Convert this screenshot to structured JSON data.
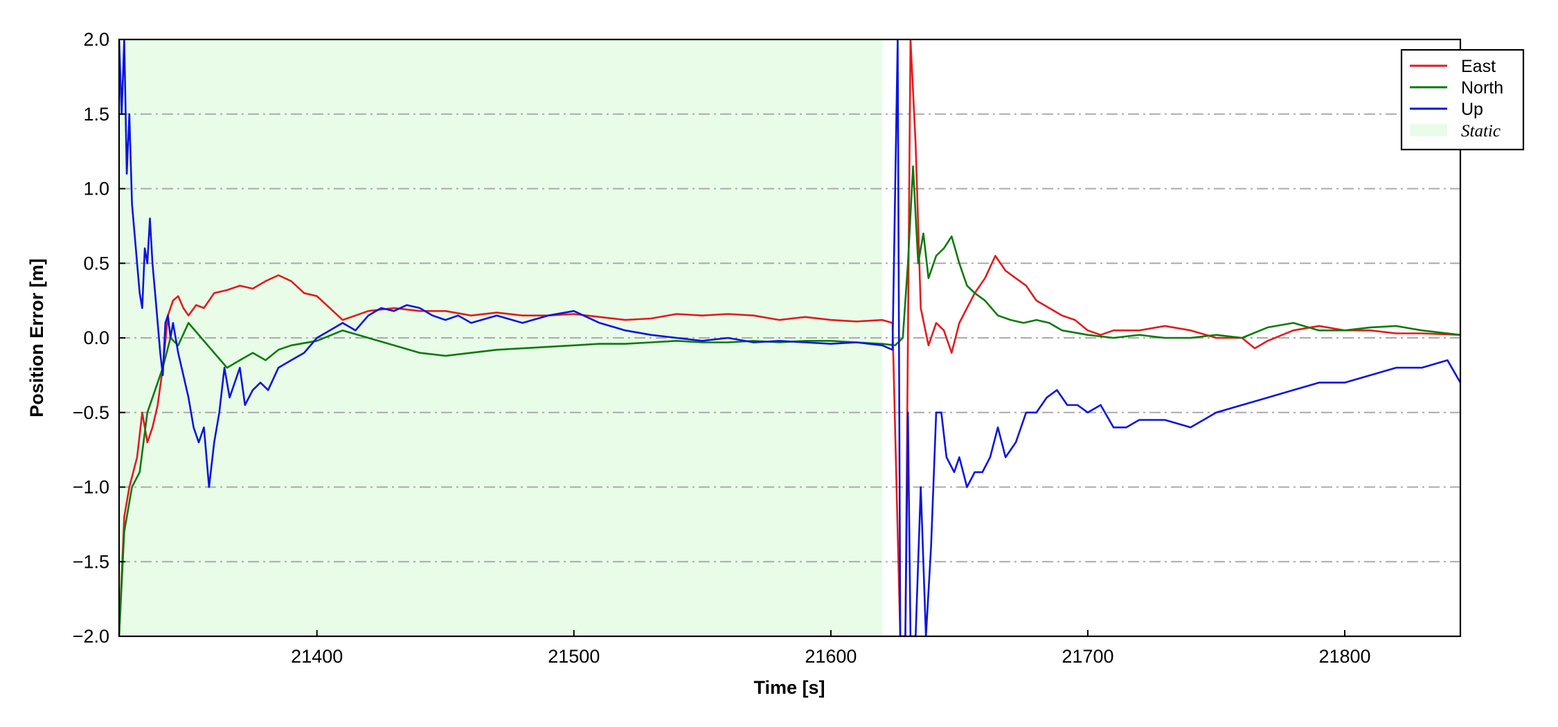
{
  "chart_data": {
    "type": "line",
    "xlabel": "Time [s]",
    "ylabel": "Position Error [m]",
    "xlim": [
      21323,
      21845
    ],
    "ylim": [
      -2.0,
      2.0
    ],
    "xticks": [
      21400,
      21500,
      21600,
      21700,
      21800
    ],
    "xtick_labels": [
      "21400",
      "21500",
      "21600",
      "21700",
      "21800"
    ],
    "yticks": [
      -2.0,
      -1.5,
      -1.0,
      -0.5,
      0.0,
      0.5,
      1.0,
      1.5,
      2.0
    ],
    "ytick_labels": [
      "−2.0",
      "−1.5",
      "−1.0",
      "−0.5",
      "0.0",
      "0.5",
      "1.0",
      "1.5",
      "2.0"
    ],
    "grid": "horizontal dash-dot",
    "legend_position": "top-right",
    "shaded_regions": [
      {
        "name": "Static",
        "x_start": 21323,
        "x_end": 21620,
        "color": "#e8fce8"
      }
    ],
    "series": [
      {
        "name": "East",
        "color": "#e31a1c",
        "x": [
          21323,
          21325,
          21327,
          21330,
          21332,
          21334,
          21336,
          21338,
          21340,
          21342,
          21344,
          21346,
          21348,
          21350,
          21353,
          21356,
          21360,
          21365,
          21370,
          21375,
          21380,
          21385,
          21390,
          21395,
          21400,
          21405,
          21410,
          21415,
          21420,
          21430,
          21440,
          21450,
          21460,
          21470,
          21480,
          21490,
          21500,
          21510,
          21520,
          21530,
          21540,
          21550,
          21560,
          21570,
          21580,
          21590,
          21600,
          21610,
          21620,
          21624,
          21627,
          21629,
          21631,
          21633,
          21635,
          21638,
          21641,
          21644,
          21647,
          21650,
          21653,
          21656,
          21660,
          21664,
          21668,
          21672,
          21676,
          21680,
          21685,
          21690,
          21695,
          21700,
          21705,
          21710,
          21720,
          21730,
          21740,
          21750,
          21760,
          21765,
          21770,
          21780,
          21790,
          21800,
          21810,
          21820,
          21830,
          21845
        ],
        "y": [
          -2.0,
          -1.2,
          -1.0,
          -0.8,
          -0.5,
          -0.7,
          -0.6,
          -0.45,
          -0.2,
          0.15,
          0.25,
          0.28,
          0.2,
          0.15,
          0.22,
          0.2,
          0.3,
          0.32,
          0.35,
          0.33,
          0.38,
          0.42,
          0.38,
          0.3,
          0.28,
          0.2,
          0.12,
          0.15,
          0.18,
          0.2,
          0.18,
          0.18,
          0.15,
          0.17,
          0.15,
          0.15,
          0.16,
          0.14,
          0.12,
          0.13,
          0.16,
          0.15,
          0.16,
          0.15,
          0.12,
          0.14,
          0.12,
          0.11,
          0.12,
          0.1,
          -2.0,
          -2.0,
          2.0,
          1.3,
          0.2,
          -0.05,
          0.1,
          0.05,
          -0.1,
          0.1,
          0.2,
          0.3,
          0.4,
          0.55,
          0.45,
          0.4,
          0.35,
          0.25,
          0.2,
          0.15,
          0.12,
          0.05,
          0.02,
          0.05,
          0.05,
          0.08,
          0.05,
          0.0,
          0.0,
          -0.07,
          -0.02,
          0.05,
          0.08,
          0.05,
          0.05,
          0.03,
          0.03,
          0.02
        ]
      },
      {
        "name": "North",
        "color": "#0b7a0b",
        "x": [
          21323,
          21325,
          21328,
          21331,
          21334,
          21337,
          21340,
          21343,
          21346,
          21350,
          21355,
          21360,
          21365,
          21370,
          21375,
          21380,
          21385,
          21390,
          21400,
          21410,
          21420,
          21430,
          21440,
          21450,
          21460,
          21470,
          21480,
          21490,
          21500,
          21510,
          21520,
          21530,
          21540,
          21550,
          21560,
          21570,
          21580,
          21590,
          21600,
          21610,
          21620,
          21625,
          21628,
          21630,
          21632,
          21634,
          21636,
          21638,
          21641,
          21644,
          21647,
          21650,
          21653,
          21656,
          21660,
          21665,
          21670,
          21675,
          21680,
          21685,
          21690,
          21700,
          21710,
          21720,
          21730,
          21740,
          21750,
          21760,
          21770,
          21780,
          21790,
          21800,
          21810,
          21820,
          21830,
          21845
        ],
        "y": [
          -2.0,
          -1.3,
          -1.0,
          -0.9,
          -0.5,
          -0.35,
          -0.2,
          0.0,
          -0.05,
          0.1,
          0.0,
          -0.1,
          -0.2,
          -0.15,
          -0.1,
          -0.15,
          -0.08,
          -0.05,
          -0.02,
          0.05,
          0.0,
          -0.05,
          -0.1,
          -0.12,
          -0.1,
          -0.08,
          -0.07,
          -0.06,
          -0.05,
          -0.04,
          -0.04,
          -0.03,
          -0.02,
          -0.03,
          -0.03,
          -0.02,
          -0.03,
          -0.02,
          -0.02,
          -0.03,
          -0.04,
          -0.05,
          0.0,
          0.5,
          1.15,
          0.5,
          0.7,
          0.4,
          0.55,
          0.6,
          0.68,
          0.5,
          0.35,
          0.3,
          0.25,
          0.15,
          0.12,
          0.1,
          0.12,
          0.1,
          0.05,
          0.02,
          0.0,
          0.02,
          0.0,
          0.0,
          0.02,
          0.0,
          0.07,
          0.1,
          0.05,
          0.05,
          0.07,
          0.08,
          0.05,
          0.02
        ]
      },
      {
        "name": "Up",
        "color": "#0a14e0",
        "x": [
          21323,
          21324,
          21325,
          21326,
          21327,
          21328,
          21329,
          21330,
          21331,
          21332,
          21333,
          21334,
          21335,
          21336,
          21337,
          21338,
          21339,
          21340,
          21341,
          21342,
          21343,
          21344,
          21346,
          21348,
          21350,
          21352,
          21354,
          21356,
          21358,
          21360,
          21362,
          21364,
          21366,
          21368,
          21370,
          21372,
          21375,
          21378,
          21381,
          21385,
          21390,
          21395,
          21400,
          21405,
          21410,
          21415,
          21420,
          21425,
          21430,
          21435,
          21440,
          21445,
          21450,
          21455,
          21460,
          21470,
          21480,
          21490,
          21500,
          21510,
          21520,
          21530,
          21540,
          21550,
          21560,
          21570,
          21580,
          21590,
          21600,
          21610,
          21620,
          21624,
          21626,
          21627,
          21628,
          21629,
          21630,
          21631,
          21633,
          21635,
          21637,
          21639,
          21641,
          21643,
          21645,
          21648,
          21650,
          21653,
          21656,
          21659,
          21662,
          21665,
          21668,
          21672,
          21676,
          21680,
          21684,
          21688,
          21692,
          21696,
          21700,
          21705,
          21710,
          21715,
          21720,
          21730,
          21740,
          21750,
          21760,
          21770,
          21780,
          21790,
          21800,
          21810,
          21820,
          21830,
          21840,
          21845
        ],
        "y": [
          2.0,
          1.5,
          2.0,
          1.1,
          1.5,
          0.9,
          0.7,
          0.5,
          0.3,
          0.2,
          0.6,
          0.5,
          0.8,
          0.5,
          0.3,
          0.1,
          -0.1,
          -0.25,
          0.1,
          0.15,
          0.0,
          0.1,
          -0.1,
          -0.25,
          -0.4,
          -0.6,
          -0.7,
          -0.6,
          -1.0,
          -0.7,
          -0.5,
          -0.2,
          -0.4,
          -0.3,
          -0.2,
          -0.45,
          -0.35,
          -0.3,
          -0.35,
          -0.2,
          -0.15,
          -0.1,
          0.0,
          0.05,
          0.1,
          0.05,
          0.15,
          0.2,
          0.18,
          0.22,
          0.2,
          0.15,
          0.12,
          0.15,
          0.1,
          0.15,
          0.1,
          0.15,
          0.18,
          0.1,
          0.05,
          0.02,
          0.0,
          -0.02,
          0.0,
          -0.03,
          -0.02,
          -0.03,
          -0.04,
          -0.03,
          -0.05,
          -0.08,
          2.0,
          -2.0,
          -2.0,
          -2.0,
          -0.5,
          -2.0,
          -2.0,
          -1.0,
          -2.0,
          -1.4,
          -0.5,
          -0.5,
          -0.8,
          -0.9,
          -0.8,
          -1.0,
          -0.9,
          -0.9,
          -0.8,
          -0.6,
          -0.8,
          -0.7,
          -0.5,
          -0.5,
          -0.4,
          -0.35,
          -0.45,
          -0.45,
          -0.5,
          -0.45,
          -0.6,
          -0.6,
          -0.55,
          -0.55,
          -0.6,
          -0.5,
          -0.45,
          -0.4,
          -0.35,
          -0.3,
          -0.3,
          -0.25,
          -0.2,
          -0.2,
          -0.15,
          -0.3
        ]
      }
    ]
  },
  "legend": {
    "entries": [
      {
        "label": "East",
        "color": "#e31a1c",
        "kind": "line"
      },
      {
        "label": "North",
        "color": "#0b7a0b",
        "kind": "line"
      },
      {
        "label": "Up",
        "color": "#0a14e0",
        "kind": "line"
      },
      {
        "label": "Static",
        "color": "#e8fce8",
        "kind": "patch"
      }
    ]
  },
  "colors": {
    "grid": "#aaaaaa",
    "axes": "#000000",
    "static_fill": "#e8fce8"
  }
}
